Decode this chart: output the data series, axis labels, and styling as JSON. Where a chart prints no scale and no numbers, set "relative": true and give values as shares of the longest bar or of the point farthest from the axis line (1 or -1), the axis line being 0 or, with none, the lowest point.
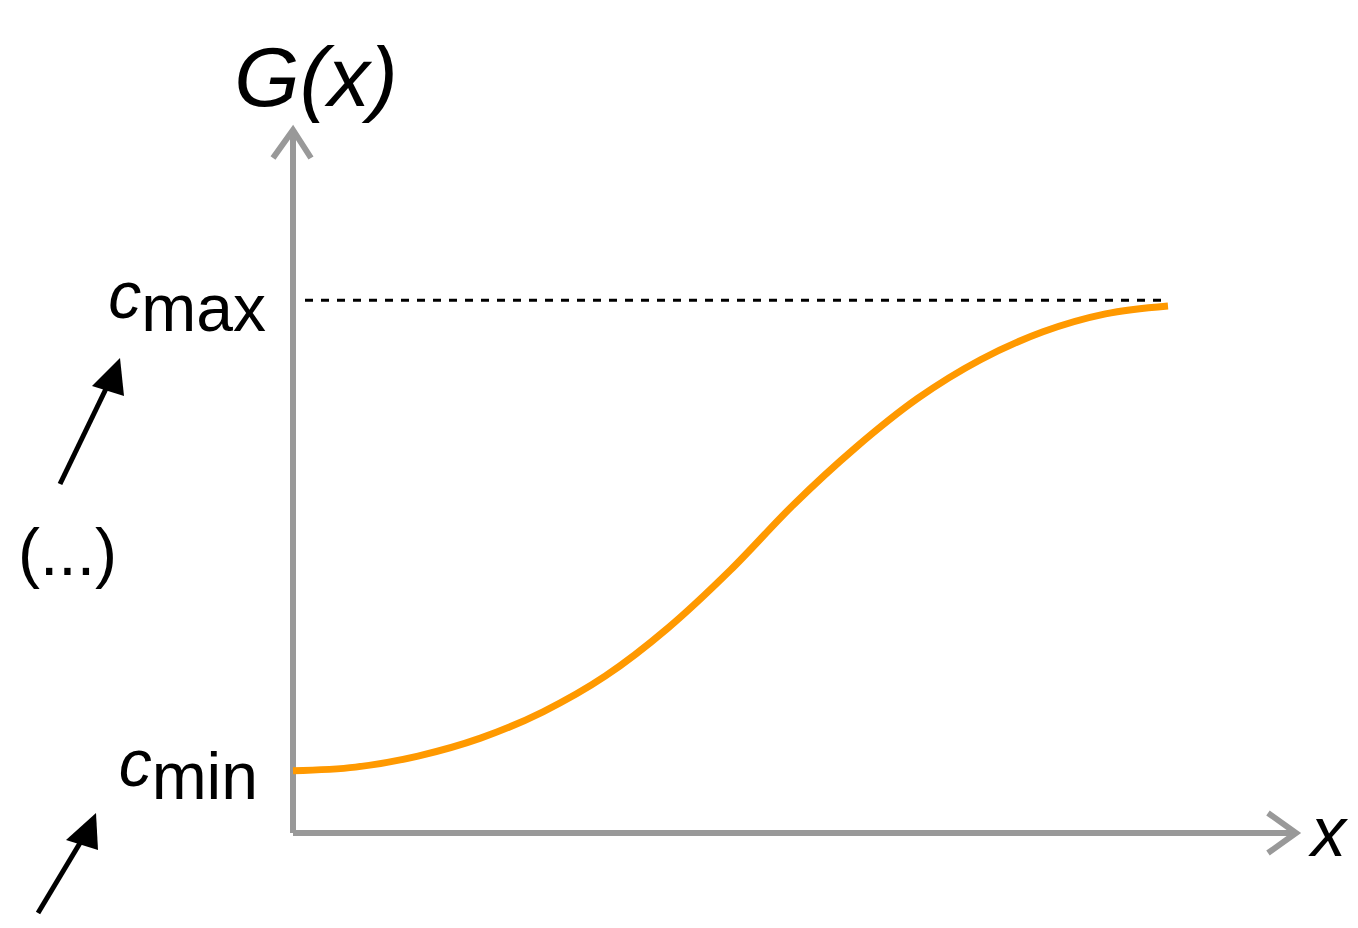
{
  "chart_data": {
    "type": "line",
    "relative": true,
    "ylabel": "G(x)",
    "xlabel": "x",
    "categories": [
      null,
      null,
      null,
      null,
      null,
      null,
      null,
      null,
      null,
      null,
      null,
      null,
      null,
      null,
      null
    ],
    "series": [
      {
        "color": "#ff9900",
        "values": [
          0.118,
          0.125,
          0.146,
          0.18,
          0.23,
          0.298,
          0.389,
          0.499,
          0.622,
          0.731,
          0.825,
          0.898,
          0.951,
          0.985,
          1
        ]
      }
    ],
    "ref_lines": [
      {
        "axis": "y",
        "value": 1.011,
        "label": "c$_{max}$",
        "line_style": "dashed",
        "color": "#000000"
      }
    ],
    "annotations": [
      "c$_{min}$",
      "(...)"
    ],
    "marker": "none",
    "line_style": "solid"
  }
}
